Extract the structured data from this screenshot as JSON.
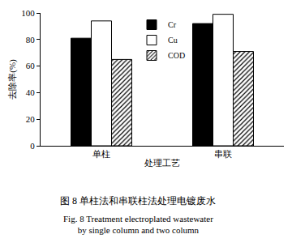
{
  "chart_data": {
    "type": "bar",
    "title": "图 8 单柱法和串联柱法处理电镀废水",
    "subtitle": [
      "Fig. 8 Treatment electroplated wastewater",
      "by single column and two column"
    ],
    "x_label": "处理工艺",
    "y_label": "去除率(%)",
    "categories": [
      "单柱",
      "串联"
    ],
    "series": [
      {
        "name": "Cr",
        "color": "#000000",
        "marker": "solid",
        "values": [
          81,
          92
        ]
      },
      {
        "name": "Cu",
        "color": "#ffffff",
        "marker": "solid",
        "values": [
          94,
          99
        ]
      },
      {
        "name": "COD",
        "color": "#ffffff",
        "marker": "hatched",
        "values": [
          65,
          71
        ]
      }
    ],
    "ylim": [
      0,
      100
    ],
    "yticks": [
      0,
      20,
      40,
      60,
      80,
      100
    ],
    "grid": false,
    "legend": "upper center"
  }
}
